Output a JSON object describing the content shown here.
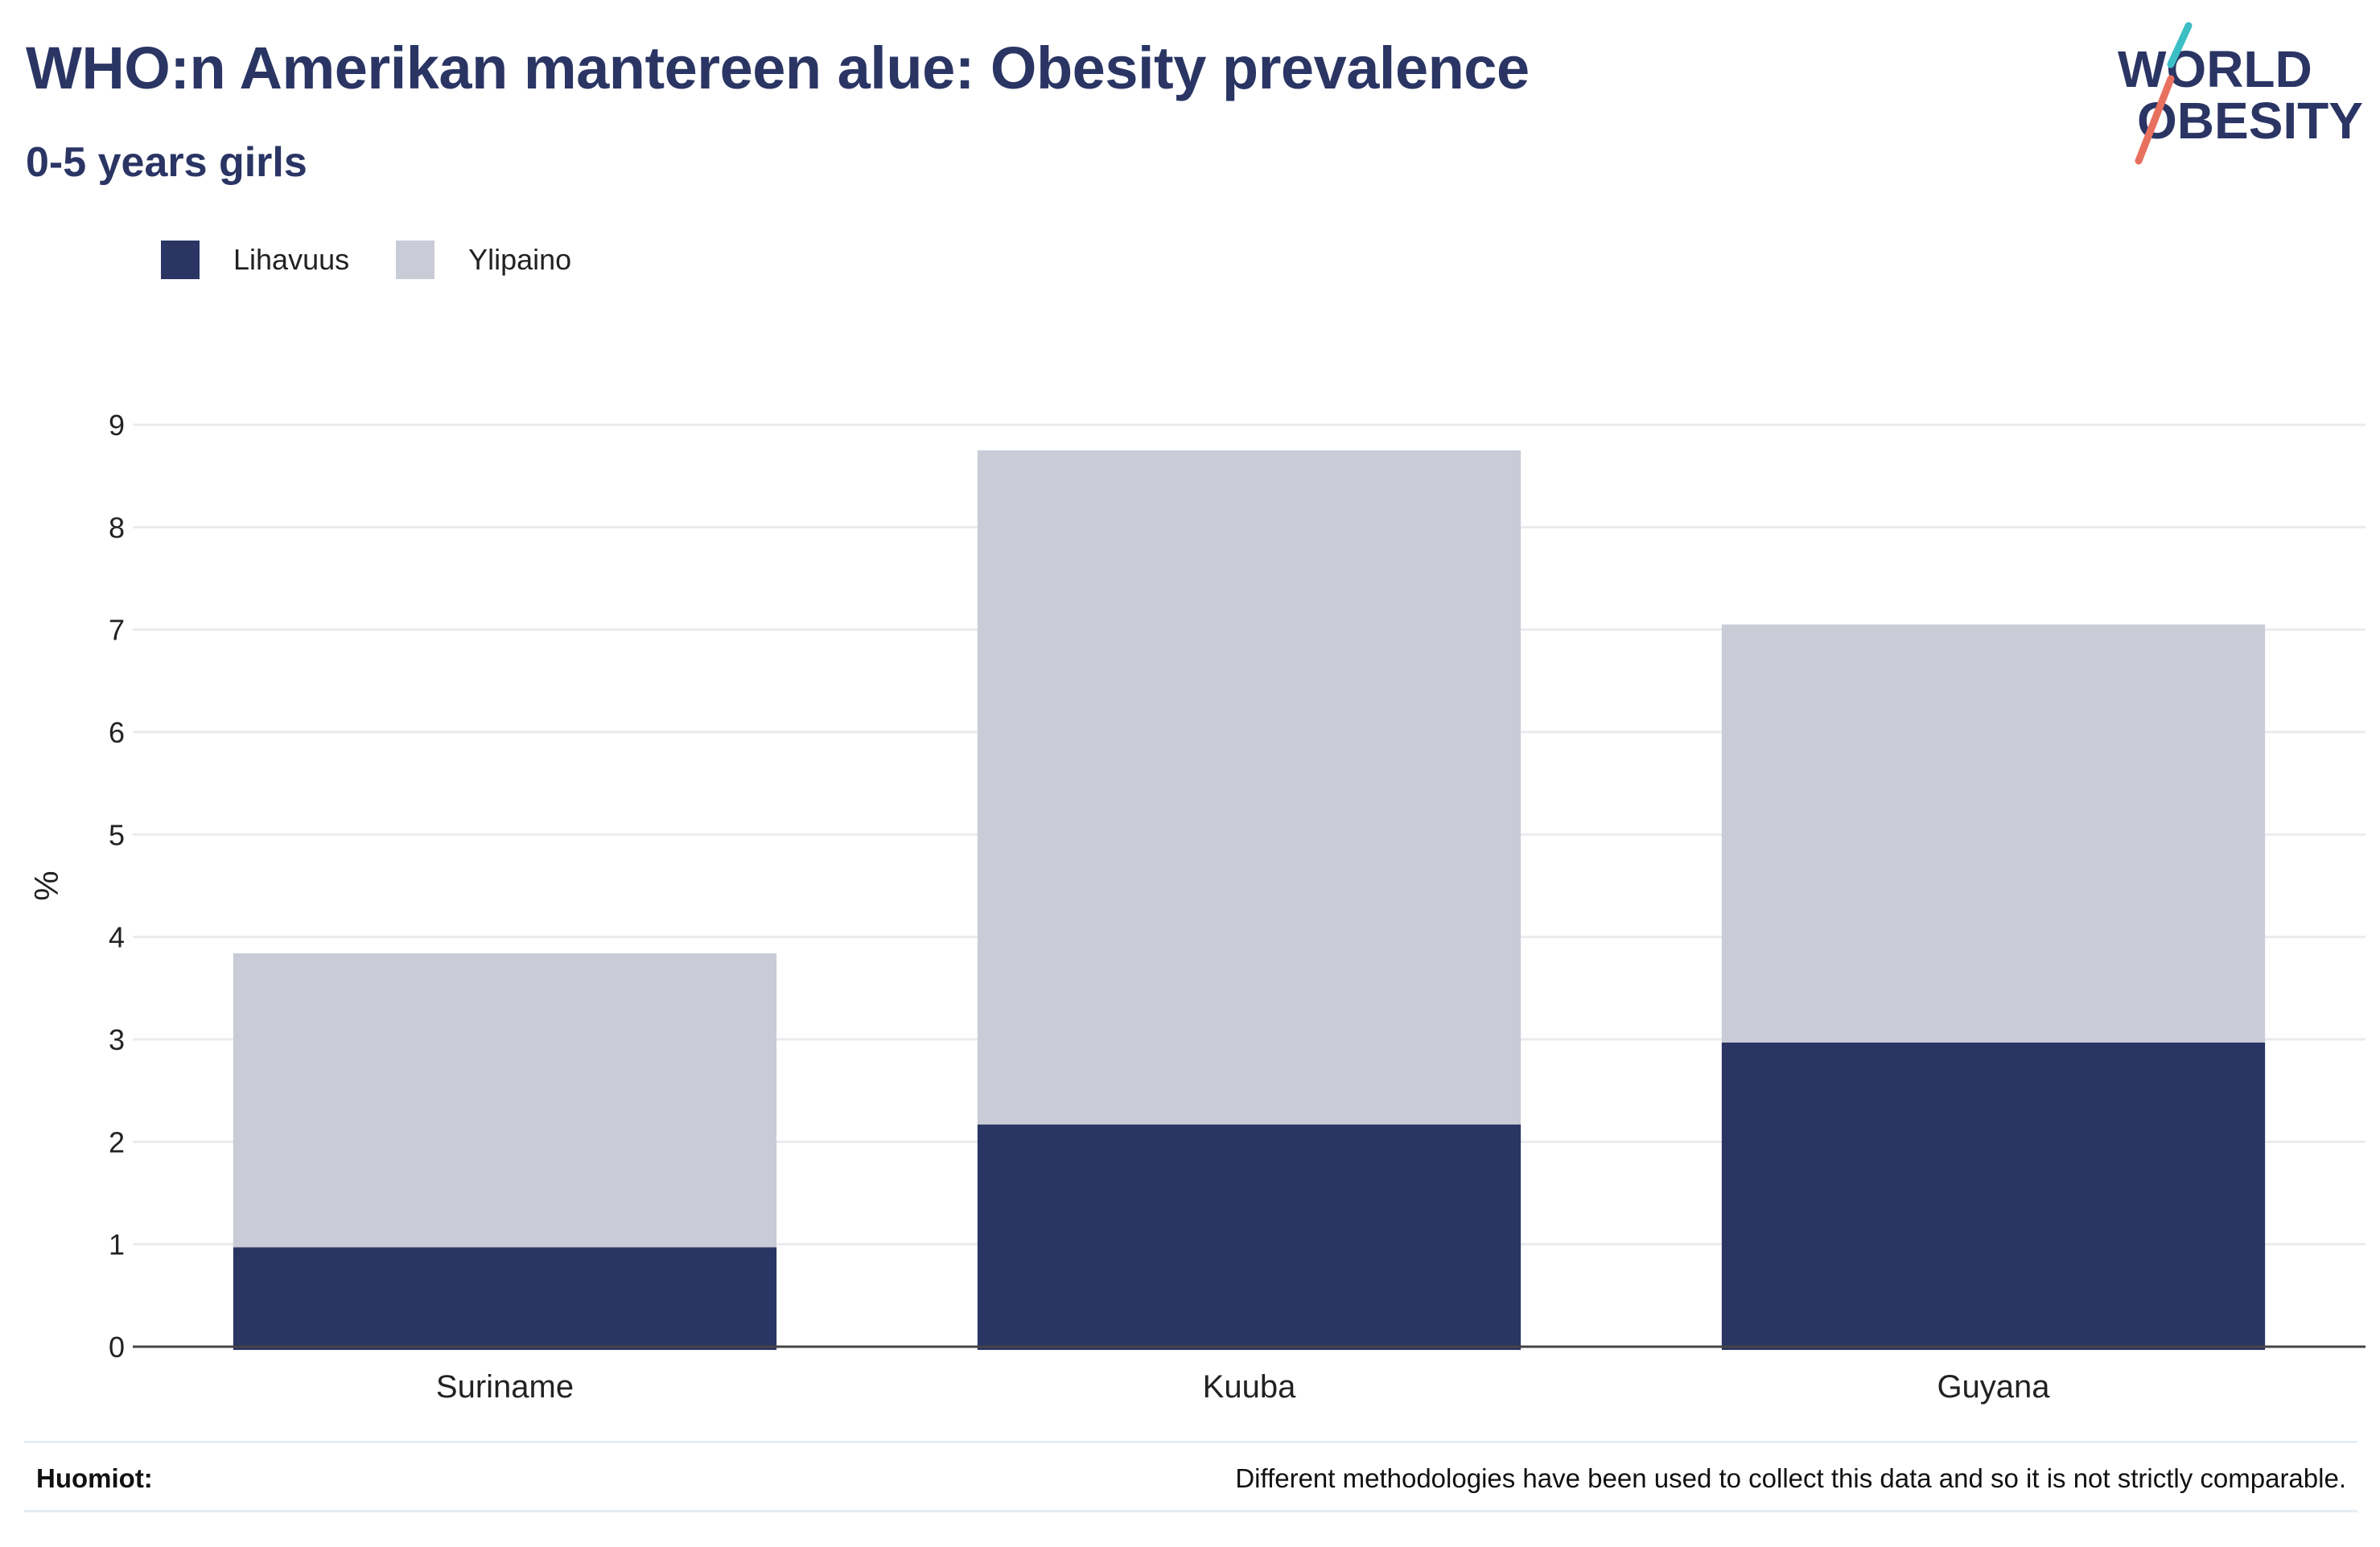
{
  "title": "WHO:n Amerikan mantereen alue: Obesity prevalence",
  "subtitle": "0-5 years girls",
  "logo": {
    "line1": "WORLD",
    "line2": "OBESITY",
    "colors": {
      "text": "#2a3564",
      "slash_top": "#3bbfc4",
      "slash_bottom": "#e8705e"
    }
  },
  "legend": [
    {
      "label": "Lihavuus",
      "color": "#2a3564"
    },
    {
      "label": "Ylipaino",
      "color": "#c9cbd7"
    }
  ],
  "footer": {
    "notes_label": "Huomiot:",
    "notes_text": "Different methodologies have been used to collect this data and so it is not strictly comparable."
  },
  "chart_data": {
    "type": "bar",
    "stacked": true,
    "categories": [
      "Suriname",
      "Kuuba",
      "Guyana"
    ],
    "series": [
      {
        "name": "Lihavuus",
        "color": "#2a3564",
        "values": [
          0.97,
          2.17,
          2.97
        ]
      },
      {
        "name": "Ylipaino",
        "color": "#c9cbd7",
        "values": [
          2.87,
          6.58,
          4.08
        ]
      }
    ],
    "ylabel": "%",
    "ylim": [
      0,
      9
    ],
    "yticks": [
      0,
      1,
      2,
      3,
      4,
      5,
      6,
      7,
      8,
      9
    ],
    "grid": true,
    "legend_position": "top-left"
  }
}
